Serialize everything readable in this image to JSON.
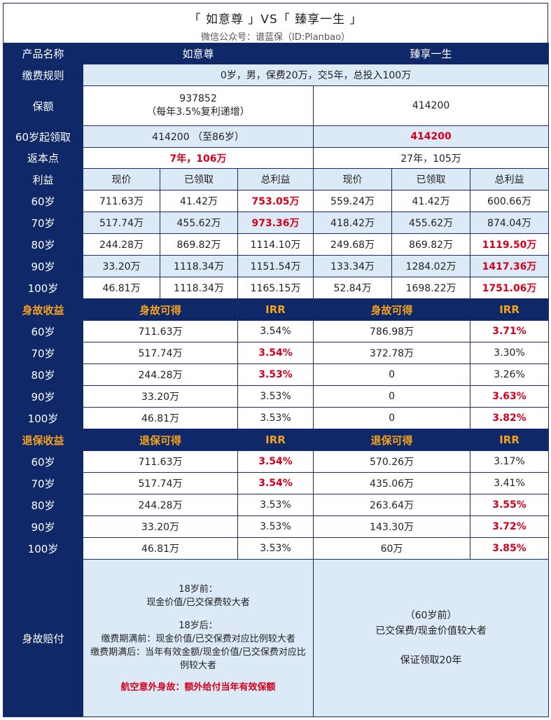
{
  "title": "「 如意尊 」VS「 臻享一生 」",
  "subtitle": "微信公众号：谱蓝保（ID:Planbao）",
  "header": {
    "label": "产品名称",
    "p1": "如意尊",
    "p2": "臻享一生"
  },
  "rule": {
    "label": "缴费规则",
    "text": "0岁，男，保费20万，交5年，总投入100万"
  },
  "amount": {
    "label": "保额",
    "p1_line1": "937852",
    "p1_line2": "（每年3.5%复利递增）",
    "p2": "414200"
  },
  "claim60": {
    "label": "60岁起领取",
    "p1": "414200 （至86岁）",
    "p2": "414200"
  },
  "breakeven": {
    "label": "返本点",
    "p1": "7年，106万",
    "p2": "27年，105万"
  },
  "profit": {
    "label": "利益",
    "cols": [
      "现价",
      "已领取",
      "总利益",
      "现价",
      "已领取",
      "总利益"
    ],
    "rows": [
      {
        "age": "60岁",
        "v": [
          "711.63万",
          "41.42万",
          "753.05万",
          "559.24万",
          "41.42万",
          "600.66万"
        ]
      },
      {
        "age": "70岁",
        "v": [
          "517.74万",
          "455.62万",
          "973.36万",
          "418.42万",
          "455.62万",
          "874.04万"
        ]
      },
      {
        "age": "80岁",
        "v": [
          "244.28万",
          "869.82万",
          "1114.10万",
          "249.68万",
          "869.82万",
          "1119.50万"
        ]
      },
      {
        "age": "90岁",
        "v": [
          "33.20万",
          "1118.34万",
          "1151.54万",
          "133.34万",
          "1284.02万",
          "1417.36万"
        ]
      },
      {
        "age": "100岁",
        "v": [
          "46.81万",
          "1118.34万",
          "1165.15万",
          "52.84万",
          "1698.22万",
          "1751.06万"
        ]
      }
    ]
  },
  "death": {
    "label": "身故收益",
    "col1": "身故可得",
    "col2": "IRR",
    "col3": "身故可得",
    "col4": "IRR",
    "rows": [
      {
        "age": "60岁",
        "v": [
          "711.63万",
          "3.54%",
          "786.98万",
          "3.71%"
        ]
      },
      {
        "age": "70岁",
        "v": [
          "517.74万",
          "3.54%",
          "372.78万",
          "3.30%"
        ]
      },
      {
        "age": "80岁",
        "v": [
          "244.28万",
          "3.53%",
          "0",
          "3.26%"
        ]
      },
      {
        "age": "90岁",
        "v": [
          "33.20万",
          "3.53%",
          "0",
          "3.63%"
        ]
      },
      {
        "age": "100岁",
        "v": [
          "46.81万",
          "3.53%",
          "0",
          "3.82%"
        ]
      }
    ]
  },
  "surrender": {
    "label": "退保收益",
    "col1": "退保可得",
    "col2": "IRR",
    "col3": "退保可得",
    "col4": "IRR",
    "rows": [
      {
        "age": "60岁",
        "v": [
          "711.63万",
          "3.54%",
          "570.26万",
          "3.17%"
        ]
      },
      {
        "age": "70岁",
        "v": [
          "517.74万",
          "3.54%",
          "435.06万",
          "3.41%"
        ]
      },
      {
        "age": "80岁",
        "v": [
          "244.28万",
          "3.53%",
          "263.64万",
          "3.55%"
        ]
      },
      {
        "age": "90岁",
        "v": [
          "33.20万",
          "3.53%",
          "143.30万",
          "3.72%"
        ]
      },
      {
        "age": "100岁",
        "v": [
          "46.81万",
          "3.53%",
          "60万",
          "3.85%"
        ]
      }
    ]
  },
  "payout": {
    "label": "身故赔付",
    "p1_l1": "18岁前：",
    "p1_l2": "现金价值/已交保费较大者",
    "p1_l3": "18岁后：",
    "p1_l4": "缴费期满前：现金价值/已交保费对应比例较大者",
    "p1_l5": "缴费期满后：当年有效金额/现金价值/已交保费对应比例较大者",
    "p1_l6": "航空意外身故：额外给付当年有效保额",
    "p2_l1": "（60岁前）",
    "p2_l2": "已交保费/现金价值较大者",
    "p2_l3": "保证领取20年"
  }
}
